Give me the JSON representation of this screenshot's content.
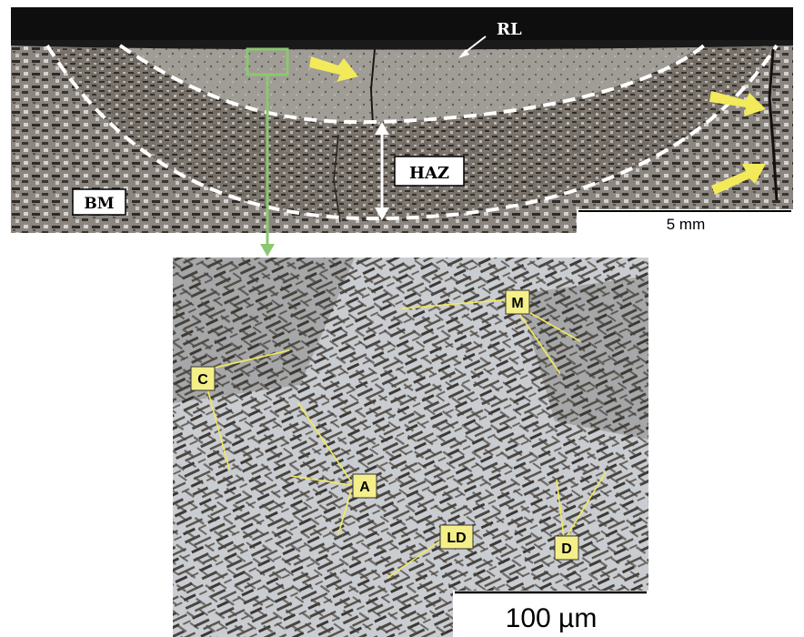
{
  "figure": {
    "top_panel": {
      "labels": {
        "rl": "RL",
        "haz": "HAZ",
        "bm": "BM"
      },
      "scale_bar": "5 mm"
    },
    "bottom_panel": {
      "labels": {
        "m": "M",
        "c": "C",
        "a": "A",
        "ld": "LD",
        "d": "D"
      },
      "scale_bar": "100 µm"
    },
    "colors": {
      "annotation_box": "#f5ef8a",
      "arrow_yellow": "#f2ea5a",
      "inset_marker": "#8cc870",
      "dashed_boundary": "#ffffff",
      "weld_fill": "#9a9690",
      "base_metal": "#6a625a"
    }
  }
}
